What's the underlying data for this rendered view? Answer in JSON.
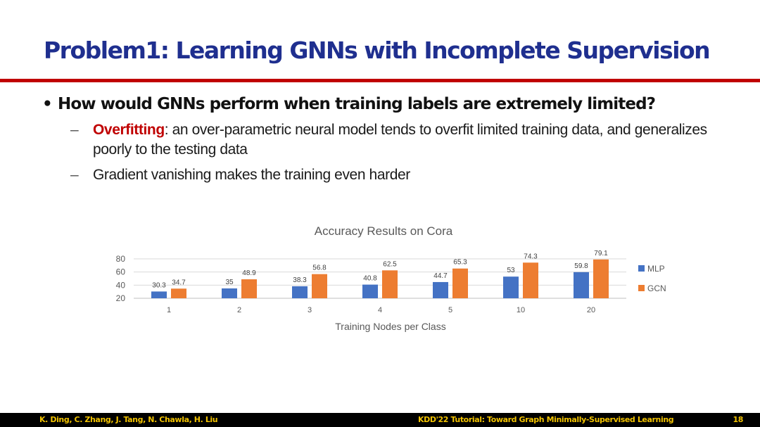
{
  "slide": {
    "title": "Problem1: Learning GNNs with Incomplete Supervision",
    "bullet_marker": "•",
    "sub_marker": "–",
    "bullet1": "How would GNNs perform when training labels are extremely limited?",
    "sub1_highlight": "Overfitting",
    "sub1_rest": ": an over-parametric neural model tends to overfit limited training data, and generalizes poorly to the testing data",
    "sub2": "Gradient vanishing makes the training even harder"
  },
  "chart_data": {
    "type": "bar",
    "title": "Accuracy Results on Cora",
    "xlabel": "Training Nodes per Class",
    "ylabel": "",
    "categories": [
      "1",
      "2",
      "3",
      "4",
      "5",
      "10",
      "20"
    ],
    "series": [
      {
        "name": "MLP",
        "values": [
          30.3,
          35,
          38.3,
          40.8,
          44.7,
          53,
          59.8
        ],
        "color": "#4472c4"
      },
      {
        "name": "GCN",
        "values": [
          34.7,
          48.9,
          56.8,
          62.5,
          65.3,
          74.3,
          79.1
        ],
        "color": "#ed7d31"
      }
    ],
    "ylim": [
      20,
      80
    ],
    "yticks": [
      20,
      40,
      60,
      80
    ],
    "grid": true,
    "legend": "right"
  },
  "footer": {
    "authors": "K. Ding, C. Zhang, J. Tang, N. Chawla, H. Liu",
    "event": "KDD'22 Tutorial: Toward Graph Minimally-Supervised Learning",
    "page_number": "18"
  }
}
